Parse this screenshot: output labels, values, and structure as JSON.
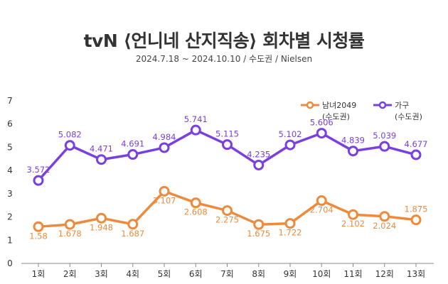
{
  "title": "tvN ⟨언니네 산지직송⟩ 회차별 시청률",
  "subtitle": "2024.7.18 ~ 2024.10.10 / 수도권 / Nielsen",
  "chart_data": {
    "type": "line",
    "categories": [
      "1회",
      "2회",
      "3회",
      "4회",
      "5회",
      "6회",
      "7회",
      "8회",
      "9회",
      "10회",
      "11회",
      "12회",
      "13회"
    ],
    "yticks": [
      "0",
      "1",
      "2",
      "3",
      "4",
      "5",
      "6",
      "7"
    ],
    "ylim": [
      0,
      7
    ],
    "grid": false,
    "legend_position": "top-right",
    "series": [
      {
        "name": "남녀2049",
        "name_sub": "(수도권)",
        "color": "#ED8A3B",
        "values": [
          1.58,
          1.678,
          1.948,
          1.687,
          3.107,
          2.608,
          2.275,
          1.675,
          1.722,
          2.704,
          2.102,
          2.024,
          1.875
        ],
        "labels": [
          "1.58",
          "1.678",
          "1.948",
          "1.687",
          "3.107",
          "2.608",
          "2.275",
          "1.675",
          "1.722",
          "2.704",
          "2.102",
          "2.024",
          "1.875"
        ]
      },
      {
        "name": "가구",
        "name_sub": "(수도권)",
        "color": "#7A3FE0",
        "values": [
          3.572,
          5.082,
          4.471,
          4.691,
          4.984,
          5.741,
          5.115,
          4.235,
          5.102,
          5.606,
          4.839,
          5.039,
          4.677
        ],
        "labels": [
          "3.572",
          "5.082",
          "4.471",
          "4.691",
          "4.984",
          "5.741",
          "5.115",
          "4.235",
          "5.102",
          "5.606",
          "4.839",
          "5.039",
          "4.677"
        ]
      }
    ]
  }
}
